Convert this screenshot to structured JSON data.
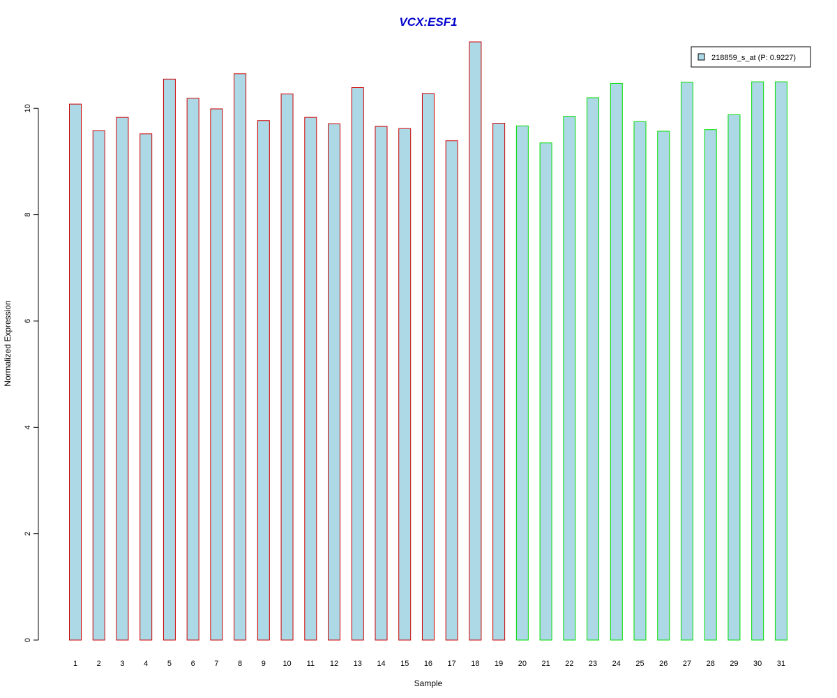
{
  "chart_data": {
    "type": "bar",
    "title": "VCX:ESF1",
    "xlabel": "Sample",
    "ylabel": "Normalized Expression",
    "categories": [
      "1",
      "2",
      "3",
      "4",
      "5",
      "6",
      "7",
      "8",
      "9",
      "10",
      "11",
      "12",
      "13",
      "14",
      "15",
      "16",
      "17",
      "18",
      "19",
      "20",
      "21",
      "22",
      "23",
      "24",
      "25",
      "26",
      "27",
      "28",
      "29",
      "30",
      "31"
    ],
    "series": [
      {
        "name": "218859_s_at (P: 0.9227)",
        "values": [
          10.08,
          9.58,
          9.83,
          9.52,
          10.55,
          10.19,
          9.99,
          10.65,
          9.77,
          10.27,
          9.83,
          9.71,
          10.39,
          9.66,
          9.62,
          10.28,
          9.39,
          11.25,
          9.72,
          9.67,
          9.35,
          9.85,
          10.2,
          10.47,
          9.75,
          9.57,
          10.49,
          9.6,
          9.88,
          10.5,
          10.5
        ]
      }
    ],
    "groups": [
      {
        "samples": [
          1,
          19
        ],
        "border_color": "#cc0000"
      },
      {
        "samples": [
          20,
          31
        ],
        "border_color": "#00dd00"
      }
    ],
    "bar_fill": "#add8e6",
    "title_color": "#0000cc",
    "yticks": [
      0,
      2,
      4,
      6,
      8,
      10
    ],
    "ylim": [
      0,
      11.25
    ],
    "grid": false,
    "legend_position": "top-right"
  }
}
